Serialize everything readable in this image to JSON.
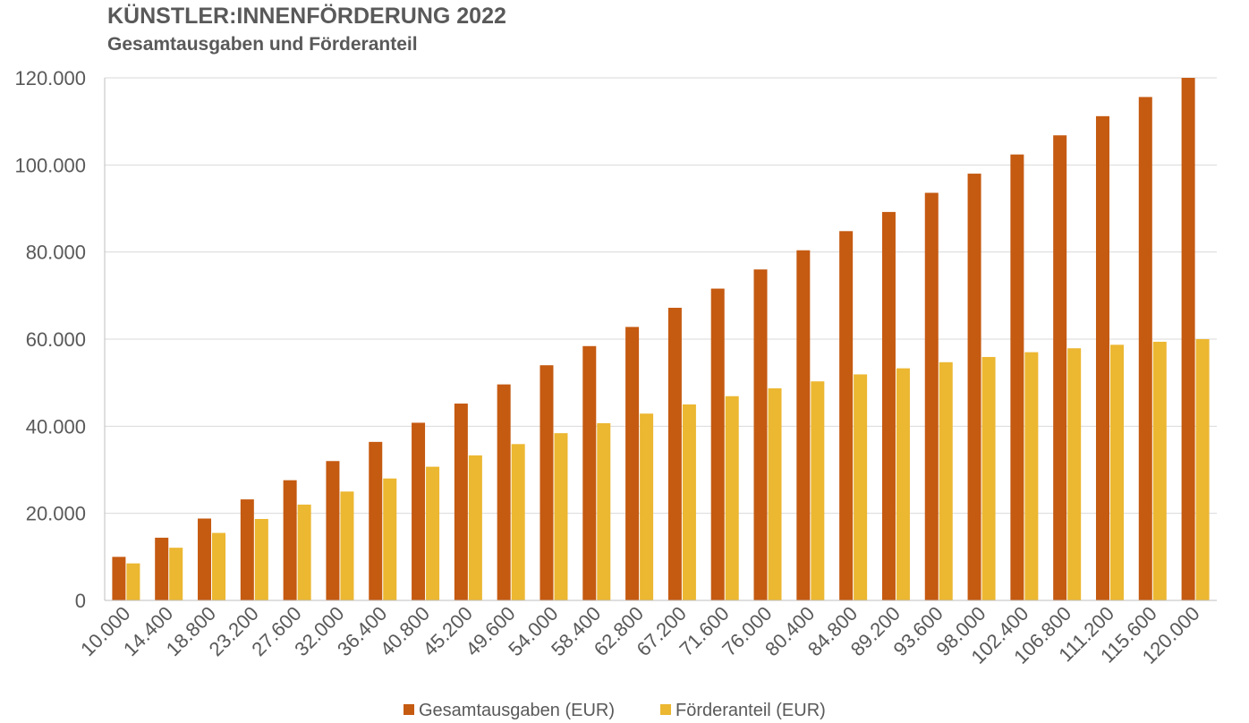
{
  "chart_data": {
    "type": "bar",
    "title": "KÜNSTLER:INNENFÖRDERUNG 2022",
    "subtitle": "Gesamtausgaben und Förderanteil",
    "xlabel": "",
    "ylabel": "",
    "ylim": [
      0,
      120000
    ],
    "yticks": [
      "0",
      "20.000",
      "40.000",
      "60.000",
      "80.000",
      "100.000",
      "120.000"
    ],
    "ytick_values": [
      0,
      20000,
      40000,
      60000,
      80000,
      100000,
      120000
    ],
    "grid": true,
    "legend_position": "bottom",
    "categories": [
      "10.000",
      "14.400",
      "18.800",
      "23.200",
      "27.600",
      "32.000",
      "36.400",
      "40.800",
      "45.200",
      "49.600",
      "54.000",
      "58.400",
      "62.800",
      "67.200",
      "71.600",
      "76.000",
      "80.400",
      "84.800",
      "89.200",
      "93.600",
      "98.000",
      "102.400",
      "106.800",
      "111.200",
      "115.600",
      "120.000"
    ],
    "series": [
      {
        "name": "Gesamtausgaben (EUR)",
        "color": "#c55a11",
        "values": [
          10000,
          14400,
          18800,
          23200,
          27600,
          32000,
          36400,
          40800,
          45200,
          49600,
          54000,
          58400,
          62800,
          67200,
          71600,
          76000,
          80400,
          84800,
          89200,
          93600,
          98000,
          102400,
          106800,
          111200,
          115600,
          120000
        ]
      },
      {
        "name": "Förderanteil (EUR)",
        "color": "#ecb731",
        "values": [
          8500,
          12100,
          15500,
          18700,
          22000,
          25000,
          28000,
          30700,
          33300,
          35900,
          38400,
          40700,
          42900,
          45000,
          46900,
          48700,
          50300,
          51900,
          53300,
          54700,
          55900,
          57000,
          57900,
          58700,
          59400,
          60000
        ]
      }
    ]
  }
}
